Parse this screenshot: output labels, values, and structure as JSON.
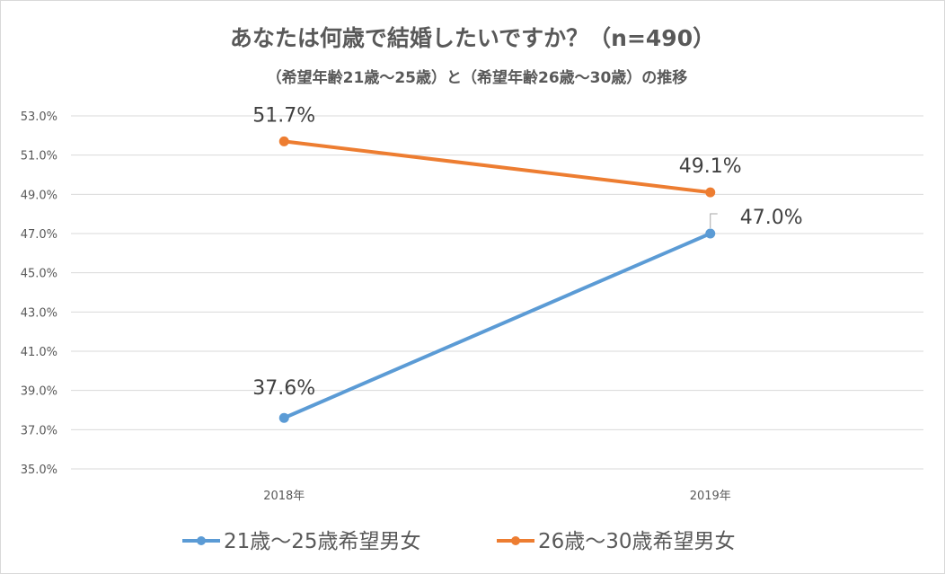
{
  "chart_data": {
    "type": "line",
    "title": "あなたは何歳で結婚したいですか？（n=490）",
    "subtitle": "（希望年齢21歳〜25歳）と（希望年齢26歳〜30歳）の推移",
    "categories": [
      "2018年",
      "2019年"
    ],
    "ylim": [
      35.0,
      53.0
    ],
    "yticks": [
      "35.0%",
      "37.0%",
      "39.0%",
      "41.0%",
      "43.0%",
      "45.0%",
      "47.0%",
      "49.0%",
      "51.0%",
      "53.0%"
    ],
    "grid": true,
    "legend_position": "bottom",
    "series": [
      {
        "name": "21歳〜25歳希望男女",
        "values": [
          37.6,
          47.0
        ],
        "labels": [
          "37.6%",
          "47.0%"
        ],
        "color": "#5b9bd5"
      },
      {
        "name": "26歳〜30歳希望男女",
        "values": [
          51.7,
          49.1
        ],
        "labels": [
          "51.7%",
          "49.1%"
        ],
        "color": "#ed7d31"
      }
    ]
  }
}
